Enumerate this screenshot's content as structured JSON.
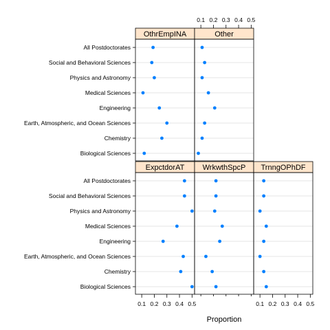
{
  "chart_data": {
    "type": "dotplot",
    "xlabel": "Proportion",
    "xlim": [
      0.05,
      0.52
    ],
    "xticks": [
      0.1,
      0.2,
      0.3,
      0.4,
      0.5
    ],
    "xtick_labels": [
      "0.1",
      "0.2",
      "0.3",
      "0.4",
      "0.5"
    ],
    "categories": [
      "Biological Sciences",
      "Chemistry",
      "Earth, Atmospheric, and Ocean Sciences",
      "Engineering",
      "Medical Sciences",
      "Physics and Astronomy",
      "Social and Behavioral Sciences",
      "All Postdoctorates"
    ],
    "panels": [
      {
        "name": "ExpctdorAT",
        "values": [
          0.5,
          0.41,
          0.43,
          0.27,
          0.38,
          0.5,
          0.44,
          0.44
        ]
      },
      {
        "name": "WrkwthSpcP",
        "values": [
          0.22,
          0.19,
          0.14,
          0.25,
          0.27,
          0.21,
          0.22,
          0.22
        ]
      },
      {
        "name": "TrnngOPhDF",
        "values": [
          0.15,
          0.13,
          0.1,
          0.13,
          0.15,
          0.1,
          0.13,
          0.13
        ]
      },
      {
        "name": "OthrEmpINA",
        "values": [
          0.12,
          0.26,
          0.3,
          0.24,
          0.11,
          0.2,
          0.18,
          0.19
        ]
      },
      {
        "name": "Other",
        "values": [
          0.08,
          0.11,
          0.13,
          0.21,
          0.16,
          0.11,
          0.13,
          0.11
        ]
      }
    ],
    "strip_color": "#ffe5cc",
    "point_color": "#0080ff",
    "grid": true,
    "grid_color": "#e6e6e6"
  }
}
